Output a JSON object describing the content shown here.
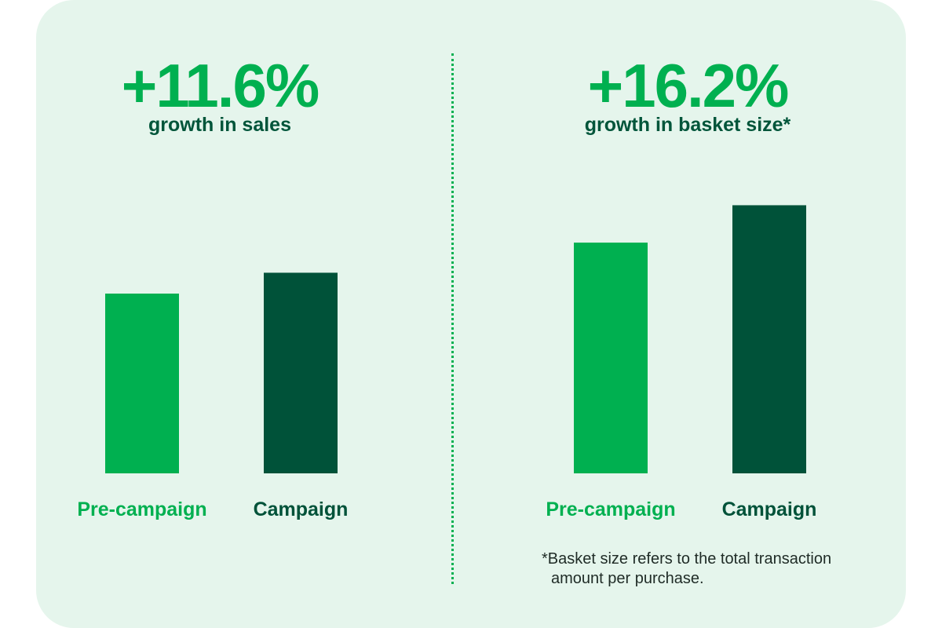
{
  "colors": {
    "card_bg": "#e5f5ec",
    "accent_green": "#00b050",
    "dark_green": "#005239",
    "text_dark": "#00553a",
    "footnote_text": "#1f2b26"
  },
  "panels": [
    {
      "headline": "+11.6%",
      "subtitle": "growth in sales"
    },
    {
      "headline": "+16.2%",
      "subtitle": "growth in basket size*"
    }
  ],
  "footnote": {
    "line1": "*Basket size refers to the total transaction",
    "line2": "amount per purchase."
  },
  "chart_data": [
    {
      "type": "bar",
      "categories": [
        "Pre-campaign",
        "Campaign"
      ],
      "values": [
        100,
        111.6
      ],
      "bar_colors": [
        "#00b050",
        "#005239"
      ],
      "title": "",
      "xlabel": "",
      "ylabel": "",
      "grid": false,
      "ylim": [
        0,
        200
      ]
    },
    {
      "type": "bar",
      "categories": [
        "Pre-campaign",
        "Campaign"
      ],
      "values": [
        100,
        116.2
      ],
      "bar_colors": [
        "#00b050",
        "#005239"
      ],
      "title": "",
      "xlabel": "",
      "ylabel": "",
      "grid": false,
      "ylim": [
        0,
        132
      ]
    }
  ]
}
